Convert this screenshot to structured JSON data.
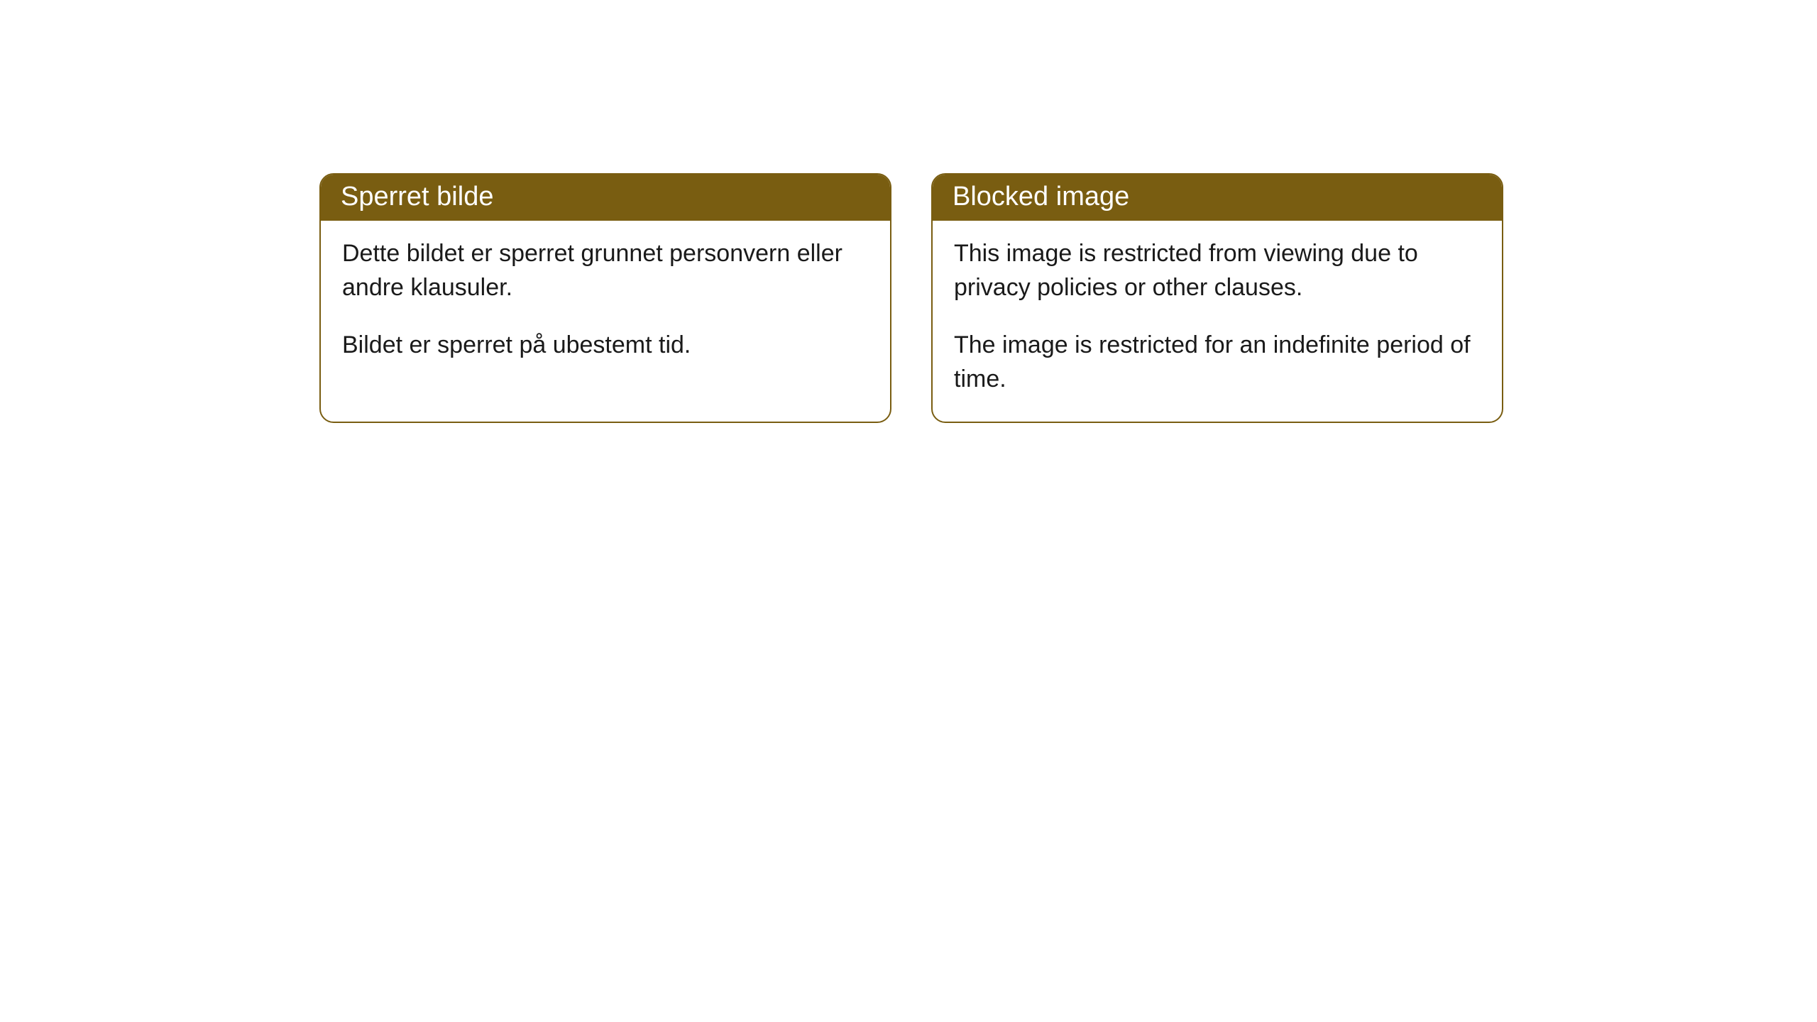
{
  "panels": [
    {
      "title": "Sperret bilde",
      "paragraph1": "Dette bildet er sperret grunnet personvern eller andre klausuler.",
      "paragraph2": "Bildet er sperret på ubestemt tid."
    },
    {
      "title": "Blocked image",
      "paragraph1": "This image is restricted from viewing due to privacy policies or other clauses.",
      "paragraph2": "The image is restricted for an indefinite period of time."
    }
  ],
  "style": {
    "header_bg": "#795d11",
    "header_text_color": "#ffffff",
    "border_color": "#795d11",
    "body_text_color": "#1a1a1a",
    "panel_bg": "#ffffff",
    "page_bg": "#ffffff",
    "border_radius": 20,
    "header_fontsize": 38,
    "body_fontsize": 34
  }
}
